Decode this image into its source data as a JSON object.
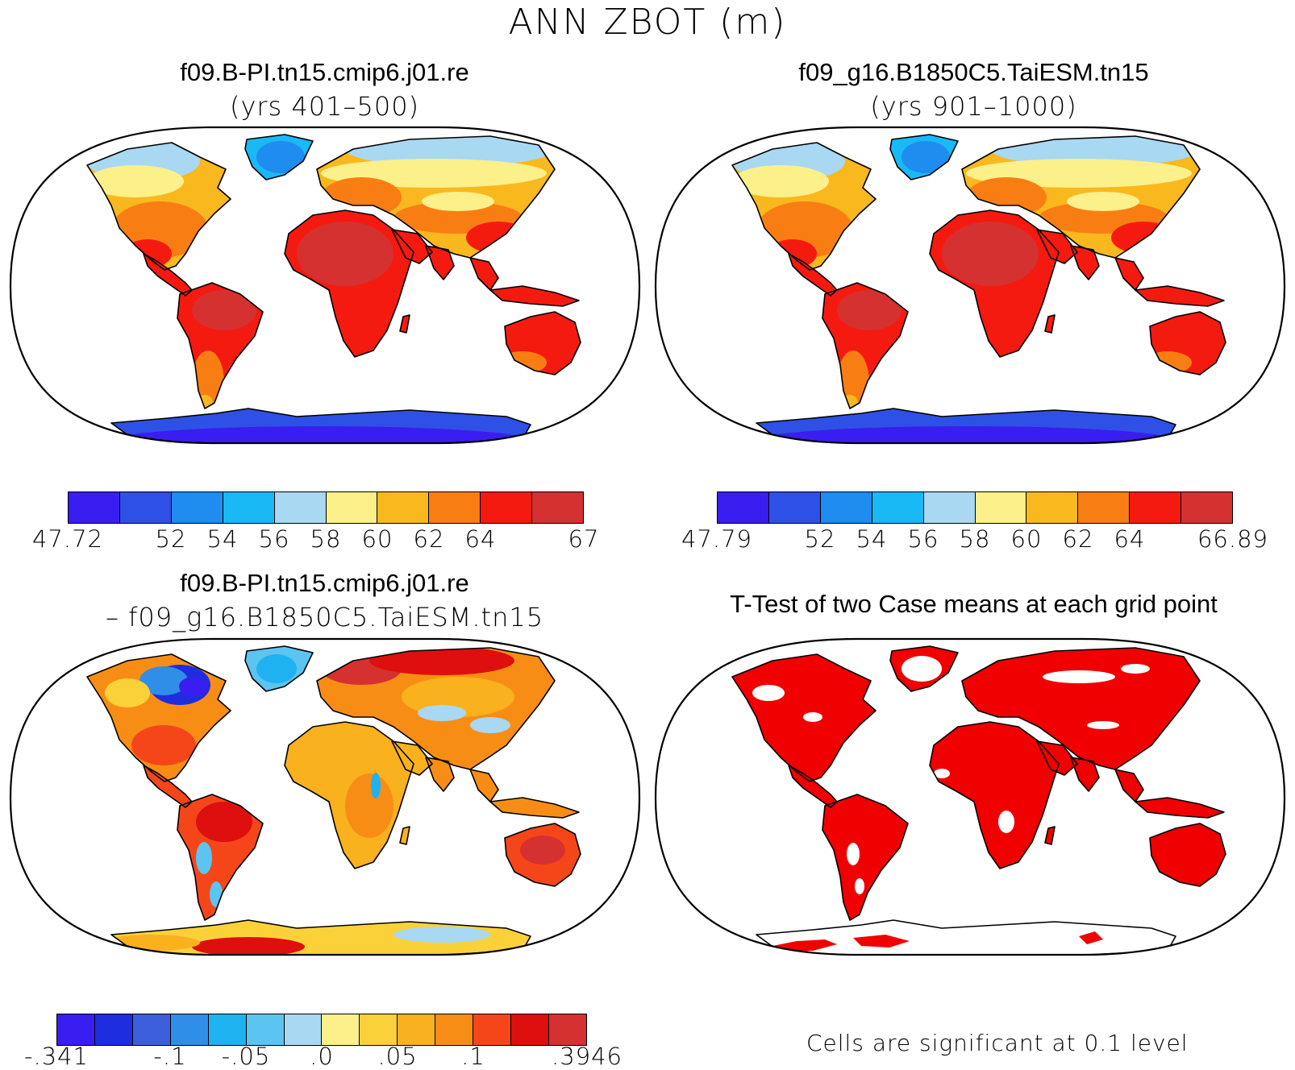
{
  "figure": {
    "title": "ANN ZBOT (m)",
    "footnote": "Cells are significant at 0.1 level"
  },
  "panels": [
    {
      "id": "case1",
      "title": "f09.B-PI.tn15.cmip6.j01.re",
      "subtitle": "(yrs 401–500)",
      "colorbar": {
        "colors": [
          "#3a1df0",
          "#2f50e6",
          "#1f8cf0",
          "#19b9f5",
          "#a8d8f2",
          "#fbf08a",
          "#f9b81e",
          "#f87e14",
          "#f51a10",
          "#d63131"
        ],
        "labels": [
          "47.72",
          "",
          "52",
          "54",
          "56",
          "58",
          "60",
          "62",
          "64",
          "",
          "67"
        ]
      }
    },
    {
      "id": "case2",
      "title": "f09_g16.B1850C5.TaiESM.tn15",
      "subtitle": "(yrs 901–1000)",
      "colorbar": {
        "colors": [
          "#3a1df0",
          "#2f50e6",
          "#1f8cf0",
          "#19b9f5",
          "#a8d8f2",
          "#fbf08a",
          "#f9b81e",
          "#f87e14",
          "#f51a10",
          "#d63131"
        ],
        "labels": [
          "47.79",
          "",
          "52",
          "54",
          "56",
          "58",
          "60",
          "62",
          "64",
          "",
          "66.89"
        ]
      }
    },
    {
      "id": "difference",
      "title": "f09.B-PI.tn15.cmip6.j01.re",
      "subtitle": "– f09_g16.B1850C5.TaiESM.tn15",
      "colorbar": {
        "colors": [
          "#3a1df0",
          "#1e2de0",
          "#3d5fdc",
          "#2f8ee8",
          "#1fb2f0",
          "#5cc4f0",
          "#a8d8f2",
          "#fbf08a",
          "#fbd13a",
          "#f9b11e",
          "#f88d16",
          "#f5461a",
          "#de0f0f",
          "#d63131"
        ],
        "labels": [
          "-.341",
          "",
          "",
          "-.1",
          "",
          "-.05",
          "",
          ".0",
          "",
          ".05",
          "",
          ".1",
          "",
          "",
          ".3946"
        ]
      }
    },
    {
      "id": "ttest",
      "title": "T-Test of two Case means at each grid point",
      "significance_color": "#f00000"
    }
  ],
  "chart_data": [
    {
      "type": "heatmap",
      "title": "f09.B-PI.tn15.cmip6.j01.re (yrs 401–500)",
      "variable": "ANN ZBOT (m)",
      "projection": "Robinson world map",
      "levels": [
        47.72,
        50,
        52,
        54,
        56,
        58,
        60,
        62,
        64,
        65.5,
        67
      ],
      "range": [
        47.72,
        67
      ],
      "regions": [
        {
          "region": "Antarctica",
          "value_m": 49
        },
        {
          "region": "Greenland",
          "value_m": 55
        },
        {
          "region": "Canada / Northern Europe & Siberia high latitudes",
          "value_m": 57
        },
        {
          "region": "Northern Eurasia",
          "value_m": 59
        },
        {
          "region": "USA / Mid-latitude Asia",
          "value_m": 62
        },
        {
          "region": "Africa / South America / Australia",
          "value_m": 65.5
        },
        {
          "region": "Sahara / Amazon",
          "value_m": 66.5
        }
      ]
    },
    {
      "type": "heatmap",
      "title": "f09_g16.B1850C5.TaiESM.tn15 (yrs 901–1000)",
      "variable": "ANN ZBOT (m)",
      "projection": "Robinson world map",
      "levels": [
        47.79,
        50,
        52,
        54,
        56,
        58,
        60,
        62,
        64,
        65.5,
        66.89
      ],
      "range": [
        47.79,
        66.89
      ],
      "regions": [
        {
          "region": "Antarctica",
          "value_m": 49
        },
        {
          "region": "Greenland",
          "value_m": 55
        },
        {
          "region": "Canada / Northern Europe & Siberia high latitudes",
          "value_m": 57
        },
        {
          "region": "Northern Eurasia",
          "value_m": 59
        },
        {
          "region": "USA / Mid-latitude Asia",
          "value_m": 62
        },
        {
          "region": "Africa / South America / Australia",
          "value_m": 65.5
        },
        {
          "region": "Sahara / Amazon",
          "value_m": 66.4
        }
      ]
    },
    {
      "type": "heatmap",
      "title": "f09.B-PI.tn15.cmip6.j01.re – f09_g16.B1850C5.TaiESM.tn15",
      "variable": "ANN ZBOT difference (m)",
      "projection": "Robinson world map",
      "range": [
        -0.341,
        0.3946
      ],
      "regions": [
        {
          "region": "Hudson Bay / eastern Canada",
          "value_m": -0.2
        },
        {
          "region": "Greenland",
          "value_m": 0.0
        },
        {
          "region": "Scandinavia / northern Russia",
          "value_m": 0.12
        },
        {
          "region": "Sahara / Middle East",
          "value_m": 0.05
        },
        {
          "region": "Amazon / southern Africa / Australia",
          "value_m": 0.08
        },
        {
          "region": "Antarctica",
          "value_m": 0.03
        }
      ]
    },
    {
      "type": "heatmap",
      "title": "T-Test of two Case means at each grid point",
      "significance_level": 0.1,
      "note": "Red = significant over most land; not significant over Antarctica interior and scattered patches"
    }
  ]
}
